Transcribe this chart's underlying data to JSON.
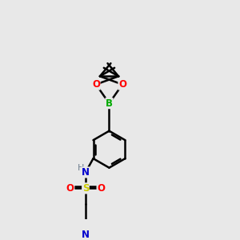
{
  "background_color": "#e8e8e8",
  "bond_color": "#000000",
  "bond_lw": 1.8,
  "atom_colors": {
    "N": "#0000cd",
    "O": "#ff0000",
    "B": "#00aa00",
    "S": "#cccc00",
    "H_label": "#708090"
  },
  "figsize": [
    3.0,
    3.0
  ],
  "dpi": 100,
  "xlim": [
    -1.2,
    1.8
  ],
  "ylim": [
    -3.2,
    2.8
  ]
}
